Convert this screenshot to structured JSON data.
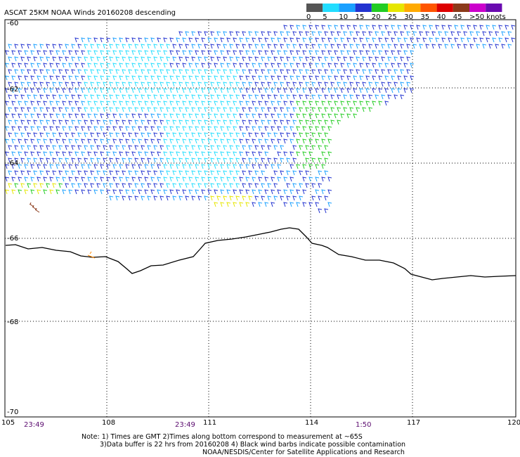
{
  "title": "ASCAT 25KM NOAA Winds 20160208 descending",
  "legend": {
    "swatches": [
      {
        "label": "0",
        "color": "#555555"
      },
      {
        "label": "5",
        "color": "#22ddff"
      },
      {
        "label": "10",
        "color": "#1aa0ff"
      },
      {
        "label": "15",
        "color": "#2233d0"
      },
      {
        "label": "20",
        "color": "#22cc22"
      },
      {
        "label": "25",
        "color": "#e6e600"
      },
      {
        "label": "30",
        "color": "#ffaa00"
      },
      {
        "label": "35",
        "color": "#ff5500"
      },
      {
        "label": "40",
        "color": "#dd0000"
      },
      {
        "label": "45",
        "color": "#8b3a1a"
      },
      {
        "label": ">50 knots",
        "color": "#cc00cc"
      }
    ],
    "last_swatch_color": "#6a0ab0"
  },
  "map": {
    "lon_labels": [
      "105",
      "108",
      "111",
      "114",
      "117",
      "120"
    ],
    "lat_labels": [
      "-60",
      "-62",
      "-64",
      "-66",
      "-68",
      "-70"
    ],
    "time_labels": [
      "23:49",
      "23:49",
      "1:50"
    ]
  },
  "notes": [
    "Note: 1) Times are GMT 2)Times along bottom correspond to measurement at ~65S",
    "3)Data buffer is 22 hrs from 20160208 4) Black wind barbs indicate possible contamination",
    "NOAA/NESDIS/Center for Satellite Applications and Research"
  ]
}
